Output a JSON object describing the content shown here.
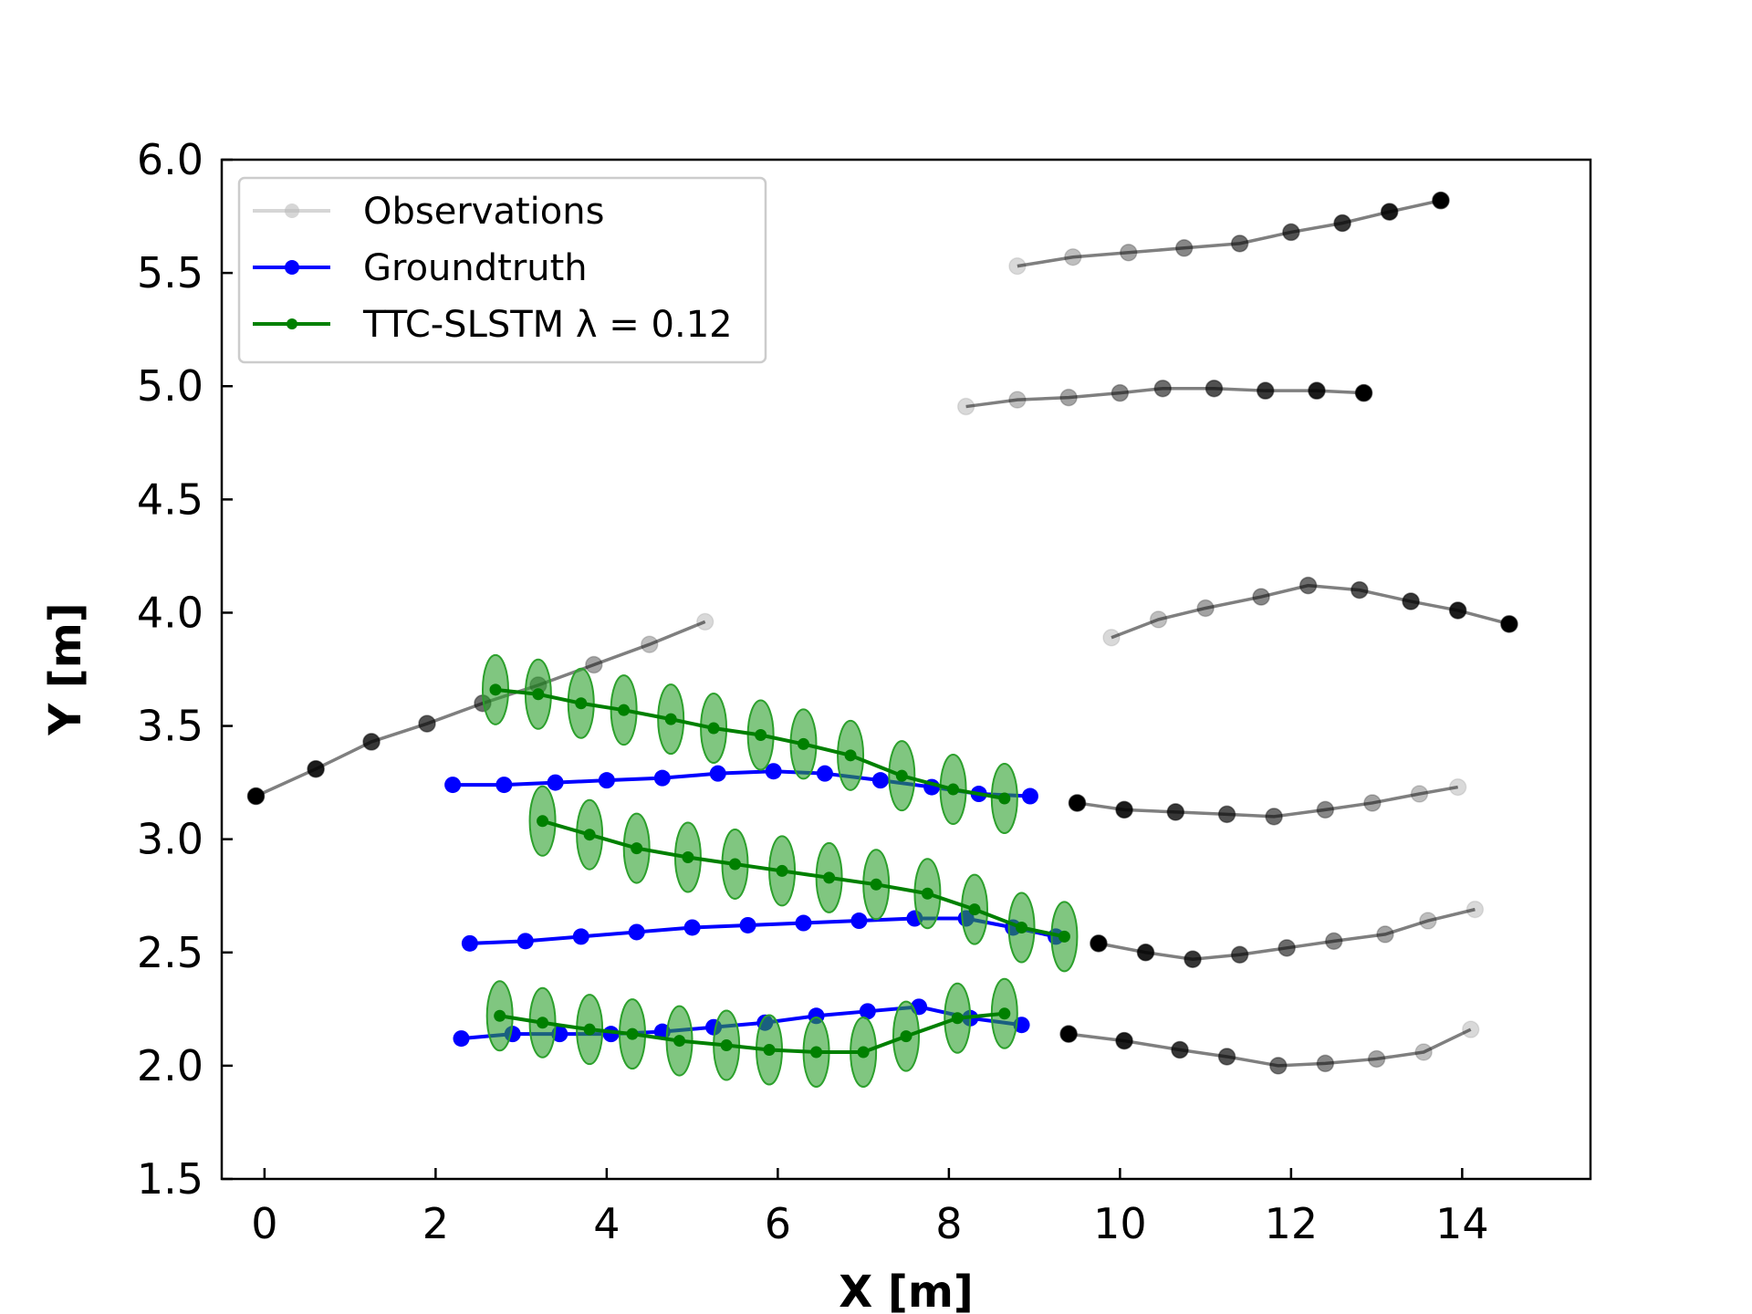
{
  "chart_data": {
    "type": "line",
    "xlabel": "X [m]",
    "ylabel": "Y [m]",
    "xlim": [
      -0.5,
      15.5
    ],
    "ylim": [
      1.5,
      6.0
    ],
    "xticks": [
      0,
      2,
      4,
      6,
      8,
      10,
      12,
      14
    ],
    "yticks": [
      1.5,
      2.0,
      2.5,
      3.0,
      3.5,
      4.0,
      4.5,
      5.0,
      5.5,
      6.0
    ],
    "grid": false,
    "legend": {
      "position": "top-left",
      "entries": [
        {
          "label": "Observations",
          "color": "#bbbbbb"
        },
        {
          "label": "Groundtruth",
          "color": "#0000ff"
        },
        {
          "label": "TTC-SLSTM λ = 0.12",
          "color": "#008000"
        }
      ]
    },
    "colors": {
      "observation_line": "#000000",
      "observation_marker": "#000000",
      "groundtruth": "#0000ff",
      "prediction": "#008000",
      "uncertainty": "#2ca02c"
    },
    "observations": [
      {
        "name": "obs-1",
        "x": [
          8.8,
          9.45,
          10.1,
          10.75,
          11.4,
          12.0,
          12.6,
          13.15,
          13.75
        ],
        "y": [
          5.53,
          5.57,
          5.59,
          5.61,
          5.63,
          5.68,
          5.72,
          5.77,
          5.82
        ]
      },
      {
        "name": "obs-2",
        "x": [
          8.2,
          8.8,
          9.4,
          10.0,
          10.5,
          11.1,
          11.7,
          12.3,
          12.85
        ],
        "y": [
          4.91,
          4.94,
          4.95,
          4.97,
          4.99,
          4.99,
          4.98,
          4.98,
          4.97
        ]
      },
      {
        "name": "obs-3",
        "x": [
          9.9,
          10.45,
          11.0,
          11.65,
          12.2,
          12.8,
          13.4,
          13.95,
          14.55
        ],
        "y": [
          3.89,
          3.97,
          4.02,
          4.07,
          4.12,
          4.1,
          4.05,
          4.01,
          3.95
        ]
      },
      {
        "name": "obs-4",
        "x": [
          5.15,
          4.5,
          3.85,
          3.2,
          2.55,
          1.9,
          1.25,
          0.6,
          -0.1
        ],
        "y": [
          3.96,
          3.86,
          3.77,
          3.68,
          3.6,
          3.51,
          3.43,
          3.31,
          3.19
        ]
      },
      {
        "name": "obs-5",
        "x": [
          13.95,
          13.5,
          12.95,
          12.4,
          11.8,
          11.25,
          10.65,
          10.05,
          9.5
        ],
        "y": [
          3.23,
          3.2,
          3.16,
          3.13,
          3.1,
          3.11,
          3.12,
          3.13,
          3.16
        ]
      },
      {
        "name": "obs-6",
        "x": [
          14.15,
          13.6,
          13.1,
          12.5,
          11.95,
          11.4,
          10.85,
          10.3,
          9.75
        ],
        "y": [
          2.69,
          2.64,
          2.58,
          2.55,
          2.52,
          2.49,
          2.47,
          2.5,
          2.54
        ]
      },
      {
        "name": "obs-7",
        "x": [
          14.1,
          13.55,
          13.0,
          12.4,
          11.85,
          11.25,
          10.7,
          10.05,
          9.4
        ],
        "y": [
          2.16,
          2.06,
          2.03,
          2.01,
          2.0,
          2.04,
          2.07,
          2.11,
          2.14
        ]
      }
    ],
    "groundtruth": [
      {
        "name": "gt-1",
        "x": [
          2.2,
          2.8,
          3.4,
          4.0,
          4.65,
          5.3,
          5.95,
          6.55,
          7.2,
          7.8,
          8.35,
          8.95
        ],
        "y": [
          3.24,
          3.24,
          3.25,
          3.26,
          3.27,
          3.29,
          3.3,
          3.29,
          3.26,
          3.23,
          3.2,
          3.19
        ]
      },
      {
        "name": "gt-2",
        "x": [
          2.4,
          3.05,
          3.7,
          4.35,
          5.0,
          5.65,
          6.3,
          6.95,
          7.6,
          8.2,
          8.75,
          9.25
        ],
        "y": [
          2.54,
          2.55,
          2.57,
          2.59,
          2.61,
          2.62,
          2.63,
          2.64,
          2.65,
          2.65,
          2.61,
          2.57
        ]
      },
      {
        "name": "gt-3",
        "x": [
          2.3,
          2.9,
          3.45,
          4.05,
          4.65,
          5.25,
          5.85,
          6.45,
          7.05,
          7.65,
          8.25,
          8.85
        ],
        "y": [
          2.12,
          2.14,
          2.14,
          2.14,
          2.15,
          2.17,
          2.19,
          2.22,
          2.24,
          2.26,
          2.21,
          2.18
        ]
      }
    ],
    "predictions": [
      {
        "name": "pred-1",
        "x": [
          2.7,
          3.2,
          3.7,
          4.2,
          4.75,
          5.25,
          5.8,
          6.3,
          6.85,
          7.45,
          8.05,
          8.65
        ],
        "y": [
          3.66,
          3.64,
          3.6,
          3.57,
          3.53,
          3.49,
          3.46,
          3.42,
          3.37,
          3.28,
          3.22,
          3.18
        ]
      },
      {
        "name": "pred-2",
        "x": [
          3.25,
          3.8,
          4.35,
          4.95,
          5.5,
          6.05,
          6.6,
          7.15,
          7.75,
          8.3,
          8.85,
          9.35
        ],
        "y": [
          3.08,
          3.02,
          2.96,
          2.92,
          2.89,
          2.86,
          2.83,
          2.8,
          2.76,
          2.69,
          2.61,
          2.57
        ]
      },
      {
        "name": "pred-3",
        "x": [
          2.75,
          3.25,
          3.8,
          4.3,
          4.85,
          5.4,
          5.9,
          6.45,
          7.0,
          7.5,
          8.1,
          8.65
        ],
        "y": [
          2.22,
          2.19,
          2.16,
          2.14,
          2.11,
          2.09,
          2.07,
          2.06,
          2.06,
          2.13,
          2.21,
          2.23
        ]
      }
    ]
  }
}
